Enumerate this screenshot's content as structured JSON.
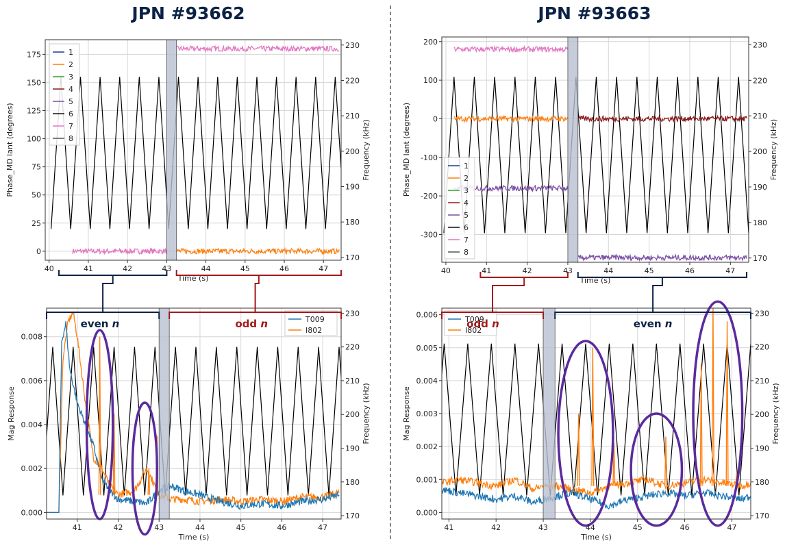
{
  "titles": {
    "left": "JPN #93662",
    "right": "JPN #93663"
  },
  "colors": {
    "c1": "#1f3a93",
    "c2": "#ff7f0e",
    "c3": "#2ca02c",
    "c4": "#8b1a1a",
    "c5": "#7b4fa6",
    "c6": "#111111",
    "c7": "#e377c2",
    "c8": "#555555",
    "T009": "#1f77b4",
    "I802": "#ff7f0e",
    "freq": "#000000",
    "ellipse": "#5b2a9e",
    "even": "#0b2245",
    "odd": "#a11a1a",
    "shade": "#b8bfcf"
  },
  "chart_data": [
    {
      "id": "tl",
      "type": "line",
      "xlabel": "Time (s)",
      "ylabel": "Phase_MD lant (degrees)",
      "y2label": "Frequency (kHz)",
      "xlim": [
        39.9,
        47.45
      ],
      "ylim": [
        -8,
        188
      ],
      "y2lim": [
        169.2,
        231.5
      ],
      "xticks": [
        40,
        41,
        42,
        43,
        44,
        45,
        46,
        47
      ],
      "yticks": [
        0,
        25,
        50,
        75,
        100,
        125,
        150,
        175
      ],
      "y2ticks": [
        170,
        180,
        190,
        200,
        210,
        220,
        230
      ],
      "legend": [
        "1",
        "2",
        "3",
        "4",
        "5",
        "6",
        "7",
        "8"
      ],
      "shade": [
        43.0,
        43.25
      ],
      "freq_sweep": {
        "t0": 40.3,
        "period": 0.5,
        "fmin": 178,
        "fmax": 221
      },
      "phase_before": {
        "series": "7",
        "t_start": 40.6,
        "t_end": 43.0,
        "value": 0
      },
      "phase_after": [
        {
          "series": "7",
          "t_start": 43.25,
          "t_end": 47.4,
          "value": 180
        },
        {
          "series": "2",
          "t_start": 43.25,
          "t_end": 47.4,
          "value": 0
        }
      ]
    },
    {
      "id": "bl",
      "type": "line",
      "xlabel": "Time (s)",
      "ylabel": "Mag Response",
      "y2label": "Frequency (kHz)",
      "xlim": [
        40.25,
        47.45
      ],
      "ylim": [
        -0.0003,
        0.0093
      ],
      "y2lim": [
        169.0,
        231.5
      ],
      "xticks": [
        41,
        42,
        43,
        44,
        45,
        46,
        47
      ],
      "yticks": [
        0.0,
        0.002,
        0.004,
        0.006,
        0.008
      ],
      "y2ticks": [
        170,
        180,
        190,
        200,
        210,
        220,
        230
      ],
      "legend": [
        "T009",
        "I802"
      ],
      "shade": [
        43.0,
        43.25
      ],
      "freq_sweep": {
        "t0": 40.4,
        "period": 0.5,
        "fmin": 176,
        "fmax": 220
      },
      "T009_points": [
        [
          40.25,
          0
        ],
        [
          40.55,
          0
        ],
        [
          40.62,
          0.0078
        ],
        [
          40.72,
          0.0086
        ],
        [
          40.82,
          0.0065
        ],
        [
          41.0,
          0.005
        ],
        [
          41.2,
          0.004
        ],
        [
          41.4,
          0.003
        ],
        [
          41.6,
          0.0015
        ],
        [
          41.8,
          0.001
        ],
        [
          42.0,
          0.0006
        ],
        [
          42.4,
          0.0005
        ],
        [
          42.7,
          0.0004
        ],
        [
          43.0,
          0.001
        ],
        [
          43.3,
          0.0012
        ],
        [
          43.6,
          0.001
        ],
        [
          44.0,
          0.0008
        ],
        [
          44.5,
          0.0005
        ],
        [
          45.0,
          0.0003
        ],
        [
          45.5,
          0.0004
        ],
        [
          46.0,
          0.0003
        ],
        [
          46.5,
          0.0005
        ],
        [
          47.0,
          0.0006
        ],
        [
          47.4,
          0.0008
        ]
      ],
      "I802_points": [
        [
          40.25,
          0
        ],
        [
          40.55,
          0
        ],
        [
          40.65,
          0.007
        ],
        [
          40.78,
          0.0087
        ],
        [
          40.9,
          0.0091
        ],
        [
          41.0,
          0.008
        ],
        [
          41.2,
          0.005
        ],
        [
          41.4,
          0.0025
        ],
        [
          41.6,
          0.002
        ],
        [
          41.8,
          0.0012
        ],
        [
          42.0,
          0.0008
        ],
        [
          42.4,
          0.001
        ],
        [
          42.7,
          0.002
        ],
        [
          43.0,
          0.0008
        ],
        [
          43.3,
          0.0006
        ],
        [
          43.6,
          0.0006
        ],
        [
          44.0,
          0.0005
        ],
        [
          44.5,
          0.0006
        ],
        [
          45.0,
          0.0005
        ],
        [
          45.5,
          0.0006
        ],
        [
          46.0,
          0.0005
        ],
        [
          46.5,
          0.0007
        ],
        [
          47.0,
          0.0007
        ],
        [
          47.4,
          0.0009
        ]
      ],
      "spikes": {
        "I802": [
          [
            41.55,
            0.008
          ],
          [
            41.9,
            0.0045
          ],
          [
            42.75,
            0.002
          ],
          [
            42.95,
            0.0035
          ]
        ]
      },
      "ellipses": [
        {
          "cx": 41.55,
          "cy": 0.004,
          "rx": 0.32,
          "ry": 0.0043
        },
        {
          "cx": 42.65,
          "cy": 0.002,
          "rx": 0.3,
          "ry": 0.003
        }
      ],
      "brackets": [
        {
          "label": "even",
          "italic": "n",
          "t0": 40.25,
          "t1": 43.0,
          "kind": "even"
        },
        {
          "label": "odd",
          "italic": "n",
          "t0": 43.25,
          "t1": 47.45,
          "kind": "odd"
        }
      ]
    },
    {
      "id": "tr",
      "type": "line",
      "xlabel": "Time (s)",
      "ylabel": "Phase_MD lant (degrees)",
      "y2label": "Frequency (kHz)",
      "xlim": [
        39.9,
        47.45
      ],
      "ylim": [
        -372,
        212
      ],
      "y2lim": [
        168.8,
        232.2
      ],
      "xticks": [
        40,
        41,
        42,
        43,
        44,
        45,
        46,
        47
      ],
      "yticks": [
        -300,
        -200,
        -100,
        0,
        100,
        200
      ],
      "y2ticks": [
        170,
        180,
        190,
        200,
        210,
        220,
        230
      ],
      "legend": [
        "1",
        "2",
        "3",
        "4",
        "5",
        "6",
        "7",
        "8"
      ],
      "shade": [
        43.0,
        43.25
      ],
      "freq_sweep": {
        "t0": 40.2,
        "period": 0.5,
        "fmin": 177,
        "fmax": 221
      },
      "phase_before": [
        {
          "series": "7",
          "t_start": 40.2,
          "t_end": 43.0,
          "value": 180
        },
        {
          "series": "2",
          "t_start": 40.2,
          "t_end": 43.0,
          "value": 0
        },
        {
          "series": "5",
          "t_start": 40.2,
          "t_end": 43.0,
          "value": -180
        }
      ],
      "phase_after": [
        {
          "series": "4",
          "t_start": 43.25,
          "t_end": 47.4,
          "value": 0
        },
        {
          "series": "5",
          "t_start": 43.25,
          "t_end": 47.4,
          "value": -360
        }
      ]
    },
    {
      "id": "br",
      "type": "line",
      "xlabel": "Time (s)",
      "ylabel": "Mag Response",
      "y2label": "Frequency (kHz)",
      "xlim": [
        40.85,
        47.4
      ],
      "ylim": [
        -0.0002,
        0.0062
      ],
      "y2lim": [
        169.0,
        231.5
      ],
      "xticks": [
        41,
        42,
        43,
        44,
        45,
        46,
        47
      ],
      "yticks": [
        0.0,
        0.001,
        0.002,
        0.003,
        0.004,
        0.005,
        0.006
      ],
      "y2ticks": [
        170,
        180,
        190,
        200,
        210,
        220,
        230
      ],
      "legend": [
        "T009",
        "I802"
      ],
      "shade": [
        43.0,
        43.25
      ],
      "freq_sweep": {
        "t0": 40.9,
        "period": 0.5,
        "fmin": 176,
        "fmax": 221
      },
      "T009_points": [
        [
          40.85,
          0.0007
        ],
        [
          41.2,
          0.0006
        ],
        [
          41.6,
          0.0005
        ],
        [
          42.0,
          0.0004
        ],
        [
          42.4,
          0.0005
        ],
        [
          42.8,
          0.0003
        ],
        [
          43.0,
          0.0004
        ],
        [
          43.3,
          0.0005
        ],
        [
          43.6,
          0.0006
        ],
        [
          44.0,
          0.0004
        ],
        [
          44.4,
          0.0002
        ],
        [
          44.8,
          0.0004
        ],
        [
          45.2,
          0.0005
        ],
        [
          45.6,
          0.0006
        ],
        [
          46.0,
          0.0005
        ],
        [
          46.4,
          0.0006
        ],
        [
          46.8,
          0.0005
        ],
        [
          47.2,
          0.0004
        ],
        [
          47.4,
          0.0005
        ]
      ],
      "I802_points": [
        [
          40.85,
          0.0009
        ],
        [
          41.2,
          0.001
        ],
        [
          41.6,
          0.0009
        ],
        [
          42.0,
          0.0008
        ],
        [
          42.4,
          0.001
        ],
        [
          42.8,
          0.0007
        ],
        [
          43.0,
          0.0008
        ],
        [
          43.3,
          0.0008
        ],
        [
          43.6,
          0.0007
        ],
        [
          44.0,
          0.0006
        ],
        [
          44.4,
          0.0008
        ],
        [
          44.8,
          0.0009
        ],
        [
          45.2,
          0.001
        ],
        [
          45.6,
          0.0008
        ],
        [
          46.0,
          0.0009
        ],
        [
          46.4,
          0.001
        ],
        [
          46.8,
          0.0009
        ],
        [
          47.2,
          0.0008
        ],
        [
          47.4,
          0.0009
        ]
      ],
      "spikes": {
        "I802": [
          [
            43.75,
            0.003
          ],
          [
            44.05,
            0.005
          ],
          [
            44.5,
            0.0021
          ],
          [
            45.6,
            0.0023
          ],
          [
            46.35,
            0.0045
          ],
          [
            46.6,
            0.0063
          ],
          [
            46.9,
            0.0058
          ],
          [
            47.1,
            0.0012
          ]
        ]
      },
      "ellipses": [
        {
          "cx": 43.9,
          "cy": 0.0024,
          "rx": 0.58,
          "ry": 0.0028
        },
        {
          "cx": 45.4,
          "cy": 0.0013,
          "rx": 0.54,
          "ry": 0.0017
        },
        {
          "cx": 46.7,
          "cy": 0.003,
          "rx": 0.52,
          "ry": 0.0034
        }
      ],
      "brackets": [
        {
          "label": "odd",
          "italic": "n",
          "t0": 40.85,
          "t1": 43.0,
          "kind": "odd"
        },
        {
          "label": "even",
          "italic": "n",
          "t0": 43.25,
          "t1": 47.4,
          "kind": "even"
        }
      ]
    }
  ]
}
